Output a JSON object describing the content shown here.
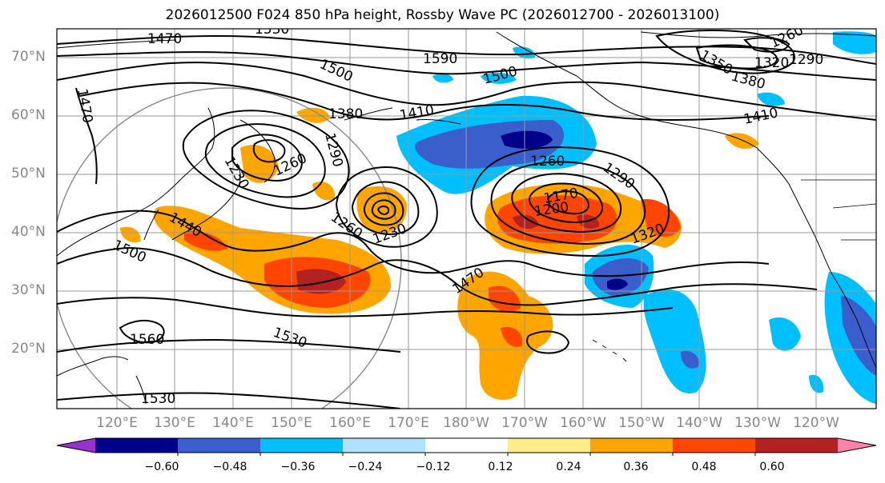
{
  "title": "2026012500 F024 850 hPa height, Rossby Wave PC (2026012700 - 2026013100)",
  "map": {
    "lat_ticks": [
      "70°N",
      "60°N",
      "50°N",
      "40°N",
      "30°N",
      "20°N"
    ],
    "lon_ticks": [
      "120°E",
      "130°E",
      "140°E",
      "150°E",
      "160°E",
      "170°E",
      "180°W",
      "170°W",
      "160°W",
      "150°W",
      "140°W",
      "130°W",
      "120°W"
    ],
    "contour_labels": [
      "1470",
      "1500",
      "1590",
      "1530",
      "1260",
      "1320",
      "1290",
      "1380",
      "1410",
      "1350",
      "1470",
      "1380",
      "1290",
      "1260",
      "1230",
      "1260",
      "1230",
      "1260",
      "1290",
      "1170",
      "1200",
      "1320",
      "1440",
      "1500",
      "1470",
      "1530",
      "1560",
      "1530",
      "1410",
      "1500"
    ]
  },
  "colorbar": {
    "colors": [
      "#9932cc",
      "#00008b",
      "#3a5fcd",
      "#00bfff",
      "#b0e2ff",
      "#ffffff",
      "#ffec8b",
      "#ffa500",
      "#ff4500",
      "#b22222",
      "#ff82ab"
    ],
    "labels": [
      "−0.60",
      "−0.48",
      "−0.36",
      "−0.24",
      "−0.12",
      "0.12",
      "0.24",
      "0.36",
      "0.48",
      "0.60"
    ]
  }
}
